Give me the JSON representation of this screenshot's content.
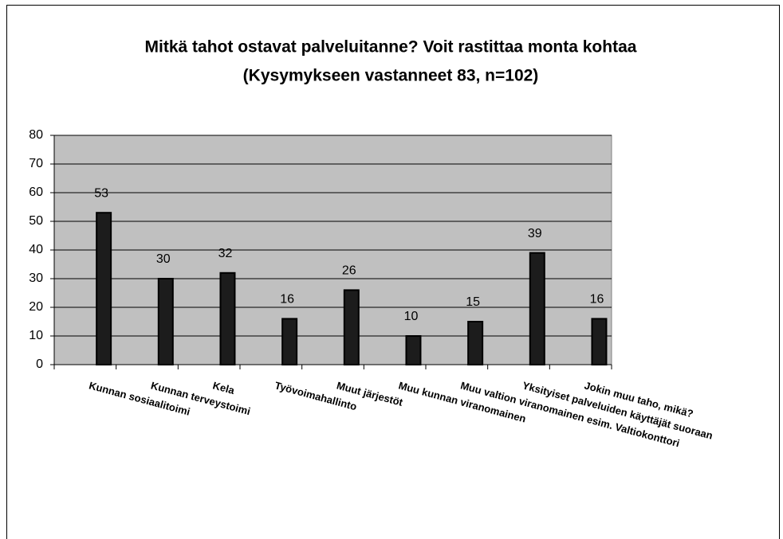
{
  "chart_data": {
    "type": "bar",
    "title": "Mitkä tahot ostavat palveluitanne? Voit rastittaa monta kohtaa",
    "subtitle": "(Kysymykseen vastanneet 83, n=102)",
    "categories": [
      "Kunnan sosiaalitoimi",
      "Kunnan terveystoimi",
      "Kela",
      "Työvoimahallinto",
      "Muut järjestöt",
      "Muu kunnan viranomainen",
      "Muu valtion viranomainen esim. Valtiokonttori",
      "Yksityiset palveluiden käyttäjät suoraan",
      "Jokin muu taho, mikä?"
    ],
    "values": [
      53,
      30,
      32,
      16,
      26,
      10,
      15,
      39,
      16
    ],
    "color": "#1c1c1c",
    "ylim": [
      0,
      80
    ],
    "yticks": [
      0,
      10,
      20,
      30,
      40,
      50,
      60,
      70,
      80
    ],
    "grid": true
  }
}
